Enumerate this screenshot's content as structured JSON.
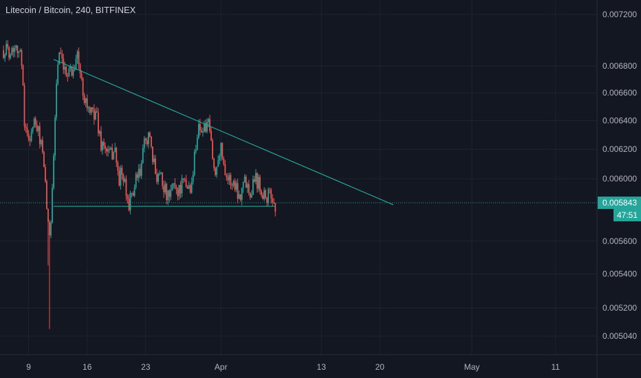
{
  "header": {
    "title": "Litecoin / Bitcoin, 240, BITFINEX"
  },
  "colors": {
    "background": "#131722",
    "grid": "#1f2330",
    "axis_text": "#b2b5be",
    "up": "#26a69a",
    "down": "#ef5350",
    "trendline": "#26a69a",
    "price_badge": "#26a69a"
  },
  "chart_data": {
    "type": "candlestick",
    "symbol": "Litecoin / Bitcoin",
    "interval": "240",
    "exchange": "BITFINEX",
    "y_ticks": [
      "0.007200",
      "0.006800",
      "0.006600",
      "0.006400",
      "0.006200",
      "0.006000",
      "0.005600",
      "0.005400",
      "0.005200",
      "0.005040"
    ],
    "x_ticks": [
      "9",
      "16",
      "23",
      "Apr",
      "13",
      "20",
      "May",
      "11"
    ],
    "scale": "log",
    "grid": true,
    "last_price": "0.005843",
    "countdown": "47:51",
    "price_path": [
      {
        "d": 6.0,
        "p": 0.00692
      },
      {
        "d": 7.0,
        "p": 0.00692
      },
      {
        "d": 7.5,
        "p": 0.00698
      },
      {
        "d": 8.0,
        "p": 0.00688
      },
      {
        "d": 8.3,
        "p": 0.00675
      },
      {
        "d": 8.5,
        "p": 0.0064
      },
      {
        "d": 8.8,
        "p": 0.00628
      },
      {
        "d": 9.2,
        "p": 0.0063
      },
      {
        "d": 9.7,
        "p": 0.00638
      },
      {
        "d": 10.2,
        "p": 0.0063
      },
      {
        "d": 10.5,
        "p": 0.00625
      },
      {
        "d": 10.8,
        "p": 0.00605
      },
      {
        "d": 11.1,
        "p": 0.0059
      },
      {
        "d": 11.4,
        "p": 0.0056
      },
      {
        "d": 11.6,
        "p": 0.0057
      },
      {
        "d": 12.0,
        "p": 0.00615
      },
      {
        "d": 12.3,
        "p": 0.00665
      },
      {
        "d": 12.6,
        "p": 0.0069
      },
      {
        "d": 13.0,
        "p": 0.0068
      },
      {
        "d": 13.4,
        "p": 0.00672
      },
      {
        "d": 13.8,
        "p": 0.0068
      },
      {
        "d": 14.2,
        "p": 0.00675
      },
      {
        "d": 14.8,
        "p": 0.0069
      },
      {
        "d": 15.3,
        "p": 0.00668
      },
      {
        "d": 15.8,
        "p": 0.00655
      },
      {
        "d": 16.4,
        "p": 0.00643
      },
      {
        "d": 17.0,
        "p": 0.00648
      },
      {
        "d": 17.6,
        "p": 0.00625
      },
      {
        "d": 18.2,
        "p": 0.0062
      },
      {
        "d": 18.8,
        "p": 0.00615
      },
      {
        "d": 19.3,
        "p": 0.00622
      },
      {
        "d": 19.7,
        "p": 0.006
      },
      {
        "d": 20.2,
        "p": 0.00603
      },
      {
        "d": 20.7,
        "p": 0.00588
      },
      {
        "d": 21.1,
        "p": 0.00584
      },
      {
        "d": 21.5,
        "p": 0.00592
      },
      {
        "d": 22.0,
        "p": 0.006
      },
      {
        "d": 22.4,
        "p": 0.00605
      },
      {
        "d": 22.8,
        "p": 0.00622
      },
      {
        "d": 23.3,
        "p": 0.00632
      },
      {
        "d": 23.8,
        "p": 0.00612
      },
      {
        "d": 24.3,
        "p": 0.00603
      },
      {
        "d": 24.8,
        "p": 0.00605
      },
      {
        "d": 25.3,
        "p": 0.00592
      },
      {
        "d": 25.8,
        "p": 0.00585
      },
      {
        "d": 26.3,
        "p": 0.00598
      },
      {
        "d": 26.8,
        "p": 0.00592
      },
      {
        "d": 27.3,
        "p": 0.00596
      },
      {
        "d": 27.8,
        "p": 0.00595
      },
      {
        "d": 28.5,
        "p": 0.00595
      },
      {
        "d": 29.0,
        "p": 0.00625
      },
      {
        "d": 29.4,
        "p": 0.00638
      },
      {
        "d": 29.8,
        "p": 0.00632
      },
      {
        "d": 30.2,
        "p": 0.00636
      },
      {
        "d": 30.6,
        "p": 0.00635
      },
      {
        "d": 31.0,
        "p": 0.00615
      },
      {
        "d": 31.3,
        "p": 0.006
      },
      {
        "d": 31.7,
        "p": 0.0062
      },
      {
        "d": 32.0,
        "p": 0.0062
      },
      {
        "d": 32.4,
        "p": 0.0061
      },
      {
        "d": 32.8,
        "p": 0.006
      },
      {
        "d": 33.2,
        "p": 0.00598
      },
      {
        "d": 33.8,
        "p": 0.00596
      },
      {
        "d": 34.2,
        "p": 0.00588
      },
      {
        "d": 34.5,
        "p": 0.00596
      },
      {
        "d": 35.0,
        "p": 0.00599
      },
      {
        "d": 35.5,
        "p": 0.00592
      },
      {
        "d": 36.0,
        "p": 0.00602
      },
      {
        "d": 36.5,
        "p": 0.00598
      },
      {
        "d": 37.0,
        "p": 0.00592
      },
      {
        "d": 37.5,
        "p": 0.00588
      },
      {
        "d": 38.0,
        "p": 0.00589
      },
      {
        "d": 38.5,
        "p": 0.00582
      }
    ],
    "support_line": {
      "p": 0.00582,
      "d_start": 12.0,
      "d_end": 38.5
    },
    "trend_line": {
      "from": {
        "d": 12.0,
        "p": 0.00685
      },
      "to": {
        "d": 52.6,
        "p": 0.00583
      }
    },
    "price_line": {
      "p": 0.005843
    }
  }
}
